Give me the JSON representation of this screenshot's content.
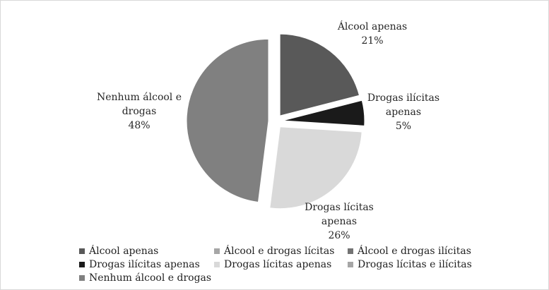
{
  "chart_data": {
    "type": "pie",
    "title": "",
    "slices": [
      {
        "label": "Álcool apenas",
        "value": 21,
        "pct_label": "21%",
        "label_lines": [
          "Álcool apenas",
          "21%"
        ],
        "color": "#595959",
        "exploded": true
      },
      {
        "label": "Drogas ilícitas apenas",
        "value": 5,
        "pct_label": "5%",
        "label_lines": [
          "Drogas ilícitas",
          "apenas",
          "5%"
        ],
        "color": "#1a1a1a",
        "exploded": true
      },
      {
        "label": "Drogas lícitas apenas",
        "value": 26,
        "pct_label": "26%",
        "label_lines": [
          "Drogas lícitas",
          "apenas",
          "26%"
        ],
        "color": "#d9d9d9",
        "exploded": true
      },
      {
        "label": "Nenhum álcool e drogas",
        "value": 48,
        "pct_label": "48%",
        "label_lines": [
          "Nenhum álcool e",
          "drogas",
          "48%"
        ],
        "color": "#808080",
        "exploded": true
      }
    ],
    "legend": {
      "placement": "bottom",
      "entries": [
        {
          "label": "Álcool apenas",
          "color": "#595959"
        },
        {
          "label": "Álcool e drogas lícitas",
          "color": "#a6a6a6"
        },
        {
          "label": "Álcool e drogas ilícitas",
          "color": "#737373"
        },
        {
          "label": "Drogas ilícitas apenas",
          "color": "#1a1a1a"
        },
        {
          "label": "Drogas lícitas apenas",
          "color": "#d9d9d9"
        },
        {
          "label": "Drogas lícitas e ilícitas",
          "color": "#a6a6a6"
        },
        {
          "label": "Nenhum álcool e drogas",
          "color": "#808080"
        }
      ]
    }
  }
}
